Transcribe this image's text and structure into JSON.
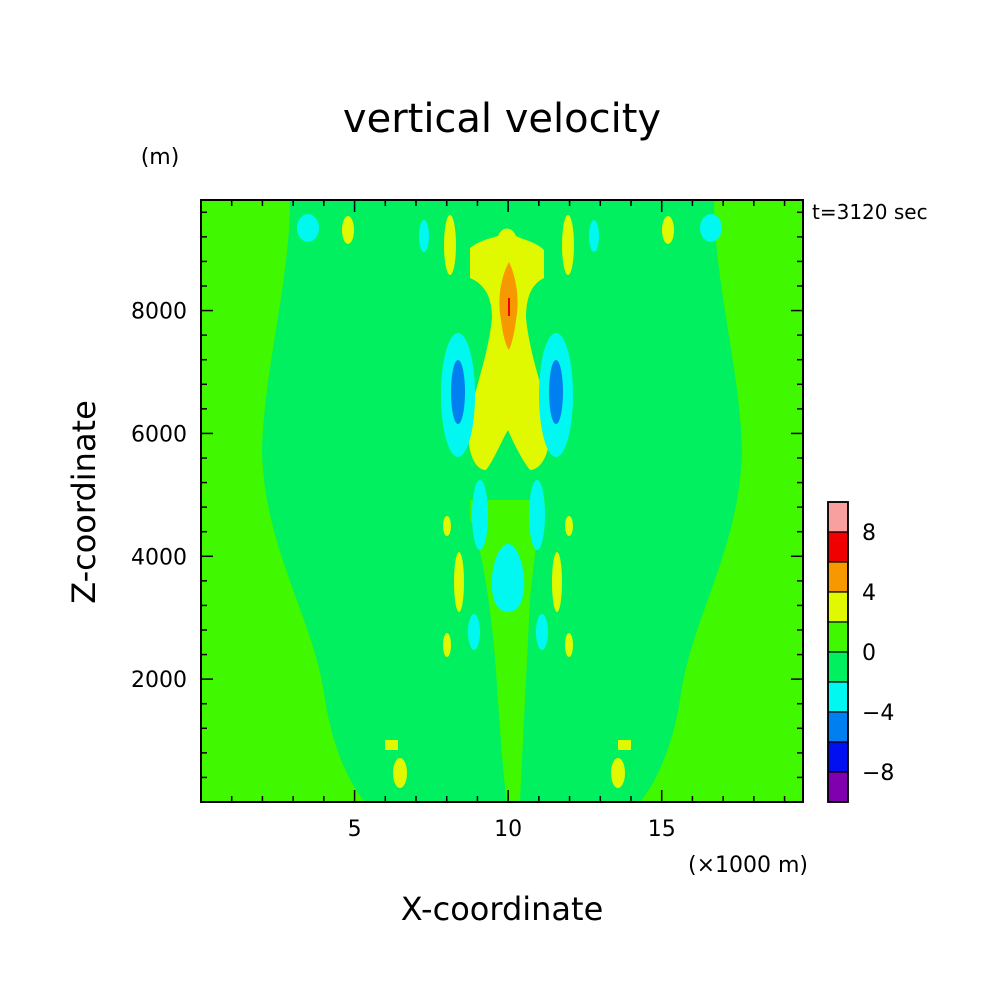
{
  "chart_data": {
    "type": "heatmap",
    "title": "vertical velocity",
    "time_label": "t=3120 sec",
    "xlabel": "X-coordinate",
    "ylabel": "Z-coordinate",
    "x_unit": "(×1000 m)",
    "y_unit": "(m)",
    "xlim": [
      0,
      19.6
    ],
    "ylim": [
      0,
      9800
    ],
    "x_ticks": [
      {
        "value": 5,
        "label": "5"
      },
      {
        "value": 10,
        "label": "10"
      },
      {
        "value": 15,
        "label": "15"
      }
    ],
    "y_ticks": [
      {
        "value": 2000,
        "label": "2000"
      },
      {
        "value": 4000,
        "label": "4000"
      },
      {
        "value": 6000,
        "label": "6000"
      },
      {
        "value": 8000,
        "label": "8000"
      }
    ],
    "colorbar": {
      "levels": [
        {
          "lo": 8,
          "hi": 10,
          "color": "#f8a0a0"
        },
        {
          "lo": 6,
          "hi": 8,
          "color": "#f00000"
        },
        {
          "lo": 4,
          "hi": 6,
          "color": "#f89800"
        },
        {
          "lo": 2,
          "hi": 4,
          "color": "#e0f800"
        },
        {
          "lo": 0,
          "hi": 2,
          "color": "#40f800"
        },
        {
          "lo": -2,
          "hi": 0,
          "color": "#00f060"
        },
        {
          "lo": -4,
          "hi": -2,
          "color": "#00f8f0"
        },
        {
          "lo": -6,
          "hi": -4,
          "color": "#0080f0"
        },
        {
          "lo": -8,
          "hi": -6,
          "color": "#0010f0"
        },
        {
          "lo": -10,
          "hi": -8,
          "color": "#8000b0"
        }
      ],
      "tick_labels": [
        {
          "value": 8,
          "label": "8"
        },
        {
          "value": 4,
          "label": "4"
        },
        {
          "value": 0,
          "label": "0"
        },
        {
          "value": -4,
          "label": "−4"
        },
        {
          "value": -8,
          "label": "−8"
        }
      ]
    },
    "field_regions": [
      {
        "band": "0 to 2",
        "shape": "background",
        "x": [
          0,
          19.6
        ],
        "z": [
          0,
          9800
        ]
      },
      {
        "band": "-2 to 0",
        "shape": "central column",
        "x": [
          3.0,
          16.6
        ],
        "z": [
          0,
          9800
        ]
      },
      {
        "band": "0 to 2",
        "shape": "outer lower region",
        "x": [
          0,
          19.6
        ],
        "z": [
          0,
          3900
        ]
      },
      {
        "band": "2 to 4",
        "shape": "cap",
        "x": [
          8.8,
          11.4
        ],
        "z": [
          8300,
          9200
        ]
      },
      {
        "band": "2 to 4",
        "shape": "column",
        "x": [
          9.4,
          10.9
        ],
        "z": [
          5500,
          8800
        ]
      },
      {
        "band": "4 to 6",
        "shape": "spindle",
        "x": [
          10.3,
          10.3
        ],
        "z": [
          7600,
          8900
        ]
      },
      {
        "band": "-6 to -4",
        "shape": "spindle",
        "x": [
          8.6,
          8.6
        ],
        "z": [
          6000,
          7500
        ]
      },
      {
        "band": "-6 to -4",
        "shape": "spindle",
        "x": [
          11.7,
          11.7
        ],
        "z": [
          6000,
          7500
        ]
      },
      {
        "band": "-4 to -2",
        "shape": "blob",
        "x": [
          9.6,
          10.6
        ],
        "z": [
          3200,
          4300
        ]
      },
      {
        "band": "-4 to -2",
        "shape": "small blob",
        "x": [
          3.4,
          3.4
        ],
        "z": [
          9300,
          9500
        ]
      },
      {
        "band": "-4 to -2",
        "shape": "small blob",
        "x": [
          16.6,
          16.6
        ],
        "z": [
          9300,
          9500
        ]
      }
    ]
  }
}
